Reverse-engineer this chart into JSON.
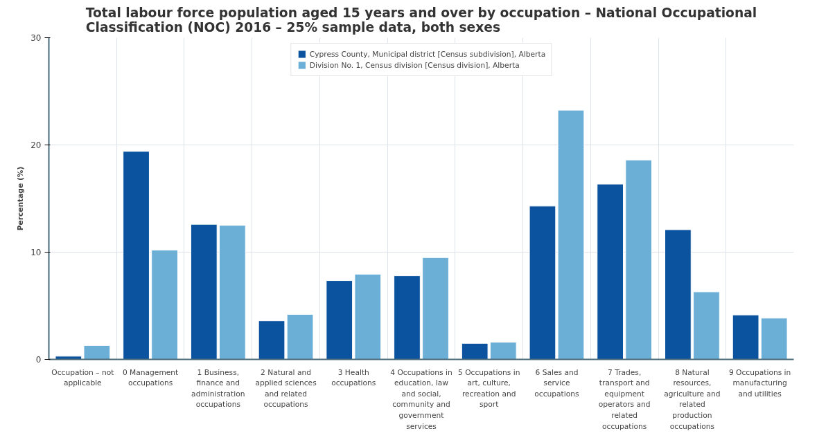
{
  "chart_data": {
    "type": "bar",
    "title": "Total labour force population aged 15 years and over by occupation – National Occupational Classification (NOC) 2016 – 25% sample data, both sexes",
    "ylabel": "Percentage (%)",
    "categories": [
      "Occupation – not applicable",
      "0 Management occupations",
      "1 Business, finance and administration occupations",
      "2 Natural and applied sciences and related occupations",
      "3 Health occupations",
      "4 Occupations in education, law and social, community and government services",
      "5 Occupations in art, culture, recreation and sport",
      "6 Sales and service occupations",
      "7 Trades, transport and equipment operators and related occupations",
      "8 Natural resources, agriculture and related production occupations",
      "9 Occupations in manufacturing and utilities"
    ],
    "series": [
      {
        "name": "Cypress County, Municipal district [Census subdivision], Alberta",
        "color": "#0b539e",
        "values": [
          0.3,
          19.4,
          12.6,
          3.6,
          7.35,
          7.8,
          1.5,
          14.3,
          16.35,
          12.1,
          4.15
        ]
      },
      {
        "name": "Division No. 1, Census division [Census division], Alberta",
        "color": "#6baed6",
        "values": [
          1.3,
          10.2,
          12.5,
          4.2,
          7.95,
          9.5,
          1.6,
          23.25,
          18.6,
          6.3,
          3.85
        ]
      }
    ],
    "ylim": [
      0,
      30
    ],
    "yticks": [
      0,
      10,
      20,
      30
    ],
    "grid": true,
    "legend": "top"
  }
}
